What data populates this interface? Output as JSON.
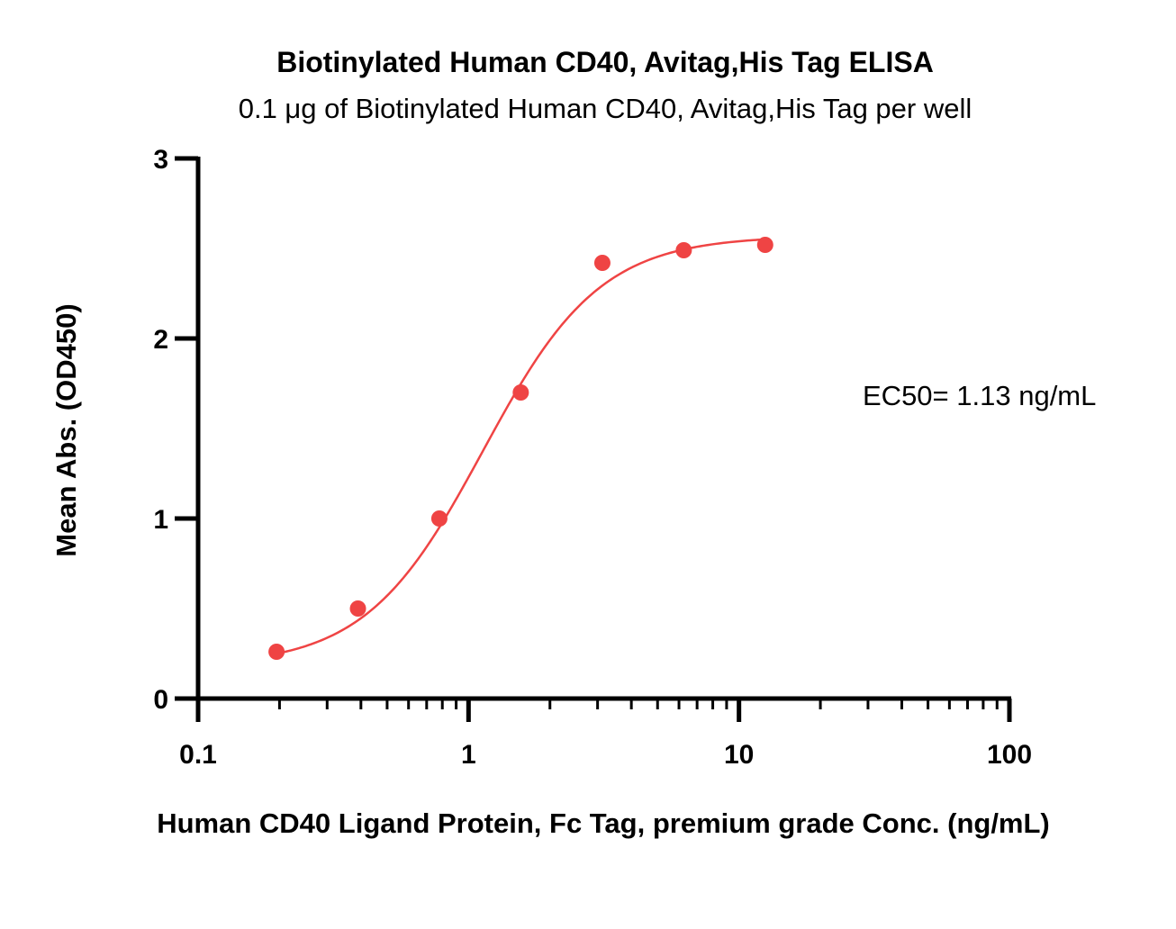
{
  "chart_data": {
    "type": "scatter",
    "title": "Biotinylated Human CD40, Avitag,His Tag ELISA",
    "subtitle": "0.1 μg of Biotinylated Human CD40, Avitag,His Tag per well",
    "xlabel": "Human CD40 Ligand Protein, Fc Tag, premium grade Conc. (ng/mL)",
    "ylabel": "Mean Abs. (OD450)",
    "x_scale": "log",
    "xlim": [
      0.1,
      100
    ],
    "ylim": [
      0,
      3
    ],
    "x_ticks": [
      "0.1",
      "1",
      "10",
      "100"
    ],
    "x_tick_values": [
      0.1,
      1,
      10,
      100
    ],
    "y_ticks": [
      "0",
      "1",
      "2",
      "3"
    ],
    "y_tick_values": [
      0,
      1,
      2,
      3
    ],
    "grid": false,
    "series": [
      {
        "color": "#ef4444",
        "x": [
          0.195,
          0.39,
          0.78,
          1.56,
          3.125,
          6.25,
          12.5
        ],
        "y": [
          0.26,
          0.5,
          1.0,
          1.7,
          2.42,
          2.49,
          2.52
        ]
      }
    ],
    "fit": {
      "type": "4PL",
      "bottom": 0.18,
      "top": 2.57,
      "ec50": 1.13,
      "hill": 2.0,
      "color": "#ef4444"
    },
    "annotation": "EC50= 1.13 ng/mL"
  }
}
